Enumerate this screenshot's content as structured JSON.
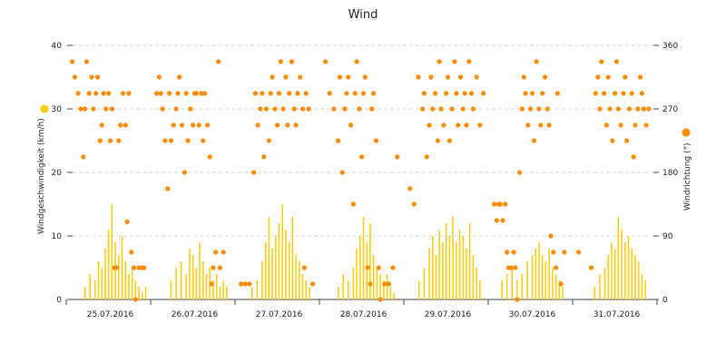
{
  "chart_data": {
    "type": "bar+scatter",
    "title": "Wind",
    "x_tick_labels": [
      "25.07.2016",
      "26.07.2016",
      "27.07.2016",
      "28.07.2016",
      "29.07.2016",
      "30.07.2016",
      "31.07.2016"
    ],
    "y_left": {
      "label": "Windgeschwindigkeit (km/h)",
      "ylim": [
        0,
        40
      ],
      "ticks": [
        0,
        10,
        20,
        30,
        40
      ]
    },
    "y_right": {
      "label": "Windrichtung (°)",
      "ylim": [
        0,
        360
      ],
      "ticks": [
        0,
        90,
        180,
        270,
        360
      ]
    },
    "grid": true,
    "series": [
      {
        "kind": "bar",
        "axis": "left",
        "color": "#ffcc00",
        "legend_marker": "left-axis",
        "days": [
          {
            "day": 0,
            "x": [
              0.2,
              0.26,
              0.32,
              0.36,
              0.4,
              0.44,
              0.48,
              0.52,
              0.56,
              0.6,
              0.64,
              0.68,
              0.72,
              0.76,
              0.8,
              0.84,
              0.88,
              0.92
            ],
            "values": [
              2,
              4,
              3,
              6,
              5,
              8,
              11,
              15,
              9,
              7,
              10,
              6,
              4,
              5,
              3,
              2,
              1,
              2
            ]
          },
          {
            "day": 1,
            "x": [
              0.22,
              0.28,
              0.34,
              0.4,
              0.44,
              0.48,
              0.52,
              0.56,
              0.6,
              0.64,
              0.68,
              0.72,
              0.76,
              0.8,
              0.84,
              0.88
            ],
            "values": [
              3,
              5,
              6,
              4,
              8,
              7,
              5,
              9,
              6,
              4,
              5,
              3,
              4,
              2,
              3,
              2
            ]
          },
          {
            "day": 2,
            "x": [
              0.18,
              0.24,
              0.3,
              0.34,
              0.38,
              0.42,
              0.46,
              0.5,
              0.54,
              0.58,
              0.62,
              0.66,
              0.7,
              0.74,
              0.78,
              0.82,
              0.86
            ],
            "values": [
              2,
              3,
              6,
              9,
              13,
              8,
              10,
              12,
              15,
              11,
              9,
              13,
              7,
              6,
              4,
              3,
              2
            ]
          },
          {
            "day": 3,
            "x": [
              0.2,
              0.26,
              0.32,
              0.38,
              0.42,
              0.46,
              0.5,
              0.54,
              0.58,
              0.62,
              0.66,
              0.7,
              0.74,
              0.78,
              0.82,
              0.86
            ],
            "values": [
              2,
              4,
              3,
              5,
              8,
              10,
              13,
              9,
              12,
              7,
              5,
              4,
              3,
              4,
              2,
              1
            ]
          },
          {
            "day": 4,
            "x": [
              0.16,
              0.22,
              0.28,
              0.32,
              0.36,
              0.4,
              0.44,
              0.48,
              0.52,
              0.56,
              0.6,
              0.64,
              0.68,
              0.72,
              0.76,
              0.8,
              0.84,
              0.88
            ],
            "values": [
              3,
              5,
              8,
              10,
              7,
              11,
              9,
              12,
              10,
              13,
              9,
              11,
              10,
              8,
              12,
              7,
              5,
              3
            ]
          },
          {
            "day": 5,
            "x": [
              0.14,
              0.2,
              0.26,
              0.32,
              0.38,
              0.44,
              0.5,
              0.54,
              0.58,
              0.62,
              0.66,
              0.7,
              0.74,
              0.78,
              0.82,
              0.86
            ],
            "values": [
              3,
              4,
              5,
              3,
              4,
              6,
              7,
              8,
              9,
              7,
              6,
              8,
              5,
              4,
              3,
              2
            ]
          },
          {
            "day": 6,
            "x": [
              0.24,
              0.3,
              0.36,
              0.4,
              0.44,
              0.48,
              0.52,
              0.56,
              0.6,
              0.64,
              0.68,
              0.72,
              0.76,
              0.8,
              0.84
            ],
            "values": [
              2,
              4,
              5,
              7,
              9,
              8,
              13,
              11,
              9,
              10,
              8,
              7,
              6,
              4,
              3
            ]
          }
        ]
      },
      {
        "kind": "scatter",
        "axis": "right",
        "color": "#ff8c00",
        "legend_marker": "right-axis",
        "days": [
          {
            "day": 0,
            "x": [
              0.05,
              0.08,
              0.12,
              0.15,
              0.18,
              0.2,
              0.22,
              0.25,
              0.28,
              0.3,
              0.33,
              0.35,
              0.38,
              0.4,
              0.42,
              0.45,
              0.48,
              0.5,
              0.52,
              0.55,
              0.58,
              0.6,
              0.62,
              0.65,
              0.68,
              0.7,
              0.72,
              0.75,
              0.78,
              0.8,
              0.84,
              0.88,
              0.9
            ],
            "values": [
              337,
              315,
              292,
              270,
              202,
              270,
              337,
              292,
              315,
              270,
              292,
              315,
              225,
              247,
              292,
              270,
              292,
              225,
              270,
              45,
              45,
              225,
              247,
              292,
              247,
              110,
              292,
              67,
              45,
              0,
              45,
              45,
              45
            ]
          },
          {
            "day": 1,
            "x": [
              0.05,
              0.08,
              0.1,
              0.12,
              0.15,
              0.18,
              0.2,
              0.22,
              0.25,
              0.28,
              0.3,
              0.32,
              0.35,
              0.38,
              0.4,
              0.42,
              0.45,
              0.48,
              0.5,
              0.52,
              0.55,
              0.58,
              0.6,
              0.62,
              0.65,
              0.68,
              0.7,
              0.72,
              0.75,
              0.78,
              0.8,
              0.84
            ],
            "values": [
              292,
              315,
              292,
              270,
              225,
              157,
              292,
              225,
              247,
              270,
              292,
              315,
              247,
              180,
              292,
              225,
              270,
              247,
              292,
              292,
              247,
              292,
              225,
              292,
              247,
              202,
              22,
              45,
              67,
              337,
              45,
              67
            ]
          },
          {
            "day": 2,
            "x": [
              0.05,
              0.1,
              0.15,
              0.2,
              0.22,
              0.25,
              0.28,
              0.3,
              0.32,
              0.35,
              0.38,
              0.4,
              0.42,
              0.45,
              0.48,
              0.5,
              0.52,
              0.55,
              0.58,
              0.6,
              0.62,
              0.65,
              0.68,
              0.7,
              0.72,
              0.75,
              0.78,
              0.8,
              0.82,
              0.85,
              0.9
            ],
            "values": [
              22,
              22,
              22,
              180,
              292,
              247,
              270,
              292,
              202,
              270,
              225,
              292,
              315,
              270,
              247,
              292,
              337,
              270,
              315,
              247,
              292,
              337,
              270,
              247,
              292,
              315,
              270,
              45,
              292,
              270,
              22
            ]
          },
          {
            "day": 3,
            "x": [
              0.05,
              0.1,
              0.15,
              0.2,
              0.22,
              0.25,
              0.28,
              0.3,
              0.32,
              0.35,
              0.38,
              0.4,
              0.42,
              0.45,
              0.48,
              0.5,
              0.52,
              0.55,
              0.58,
              0.6,
              0.62,
              0.65,
              0.68,
              0.7,
              0.75,
              0.8,
              0.85,
              0.9
            ],
            "values": [
              337,
              292,
              270,
              225,
              315,
              180,
              270,
              292,
              315,
              247,
              135,
              292,
              337,
              270,
              202,
              292,
              315,
              45,
              22,
              270,
              292,
              225,
              45,
              0,
              22,
              22,
              45,
              202
            ]
          },
          {
            "day": 4,
            "x": [
              0.05,
              0.1,
              0.15,
              0.2,
              0.22,
              0.25,
              0.28,
              0.3,
              0.32,
              0.35,
              0.38,
              0.4,
              0.42,
              0.45,
              0.48,
              0.5,
              0.52,
              0.55,
              0.58,
              0.6,
              0.62,
              0.65,
              0.68,
              0.7,
              0.72,
              0.75,
              0.78,
              0.8,
              0.84,
              0.88,
              0.92
            ],
            "values": [
              157,
              135,
              315,
              270,
              292,
              202,
              247,
              315,
              270,
              292,
              225,
              337,
              270,
              247,
              292,
              315,
              225,
              270,
              337,
              292,
              247,
              315,
              270,
              292,
              247,
              337,
              292,
              270,
              315,
              247,
              292
            ]
          },
          {
            "day": 5,
            "x": [
              0.05,
              0.08,
              0.1,
              0.12,
              0.15,
              0.18,
              0.2,
              0.22,
              0.25,
              0.28,
              0.3,
              0.32,
              0.35,
              0.38,
              0.4,
              0.42,
              0.45,
              0.48,
              0.5,
              0.52,
              0.55,
              0.58,
              0.6,
              0.62,
              0.65,
              0.68,
              0.7,
              0.72,
              0.75,
              0.78,
              0.8,
              0.84,
              0.88
            ],
            "values": [
              135,
              112,
              135,
              135,
              112,
              135,
              67,
              45,
              45,
              67,
              45,
              0,
              180,
              270,
              315,
              292,
              247,
              270,
              292,
              225,
              337,
              270,
              247,
              292,
              315,
              270,
              247,
              90,
              67,
              45,
              292,
              22,
              67
            ]
          },
          {
            "day": 6,
            "x": [
              0.05,
              0.2,
              0.25,
              0.28,
              0.3,
              0.32,
              0.35,
              0.38,
              0.4,
              0.42,
              0.45,
              0.48,
              0.5,
              0.52,
              0.55,
              0.58,
              0.6,
              0.62,
              0.65,
              0.68,
              0.7,
              0.72,
              0.75,
              0.78,
              0.8,
              0.82,
              0.85,
              0.88
            ],
            "values": [
              67,
              45,
              292,
              315,
              270,
              337,
              292,
              247,
              315,
              270,
              225,
              292,
              337,
              270,
              247,
              292,
              315,
              225,
              270,
              292,
              202,
              247,
              270,
              315,
              292,
              270,
              247,
              270
            ]
          }
        ]
      }
    ]
  },
  "colors": {
    "speed": "#ffcc00",
    "direction": "#ff8c00",
    "grid": "#d8d8d8",
    "axis": "#444444"
  }
}
